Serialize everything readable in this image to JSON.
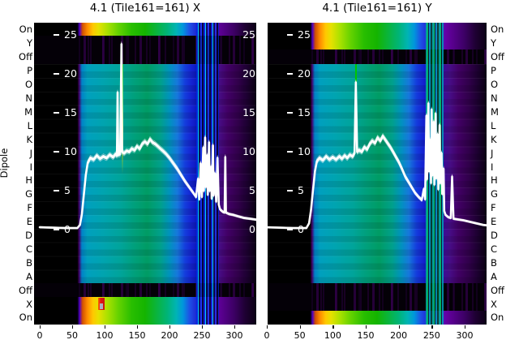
{
  "figure": {
    "title_left": "4.1 (Tile161=161) X",
    "title_right": "4.1 (Tile161=161) Y",
    "ylabel": "Dipole",
    "row_labels": [
      "On",
      "Y",
      "Off",
      "P",
      "O",
      "N",
      "M",
      "L",
      "K",
      "J",
      "I",
      "H",
      "G",
      "F",
      "E",
      "D",
      "C",
      "B",
      "A",
      "Off",
      "X",
      "On"
    ]
  },
  "colors": {
    "background": "#ffffff",
    "curve": "#ffffff",
    "axis_text": "#000000",
    "inner_tick_text": "#ffffff",
    "block_teal": "#00a4ae",
    "block_green": "#009c64",
    "block_blue": "#1432d7",
    "block_purple": "#46006e",
    "bright_orange": "#e67800",
    "bright_yellow": "#ffd700",
    "bright_green": "#1eb400",
    "hot_red": "#dd1414"
  },
  "chart_data": [
    {
      "type": "heatmap",
      "title": "4.1 (Tile161=161) X",
      "x_axis": {
        "ticks": [
          0,
          50,
          100,
          150,
          200,
          250,
          300
        ],
        "range": [
          -9,
          334
        ]
      },
      "y_inner_ticks_db": [
        25,
        20,
        15,
        10,
        5,
        0
      ],
      "inner_tick_sides": [
        "left",
        "right"
      ],
      "rows": [
        {
          "label": "On",
          "state": "spectrum"
        },
        {
          "label": "Y",
          "state": "black"
        },
        {
          "label": "Off",
          "state": "black"
        },
        {
          "label": "P",
          "state": "block"
        },
        {
          "label": "O",
          "state": "block"
        },
        {
          "label": "N",
          "state": "block"
        },
        {
          "label": "M",
          "state": "block"
        },
        {
          "label": "L",
          "state": "block"
        },
        {
          "label": "K",
          "state": "block"
        },
        {
          "label": "J",
          "state": "block"
        },
        {
          "label": "I",
          "state": "block"
        },
        {
          "label": "H",
          "state": "block"
        },
        {
          "label": "G",
          "state": "block"
        },
        {
          "label": "F",
          "state": "block"
        },
        {
          "label": "E",
          "state": "block"
        },
        {
          "label": "D",
          "state": "block"
        },
        {
          "label": "C",
          "state": "block"
        },
        {
          "label": "B",
          "state": "block"
        },
        {
          "label": "A",
          "state": "block"
        },
        {
          "label": "Off",
          "state": "black"
        },
        {
          "label": "X",
          "state": "spectrum"
        },
        {
          "label": "On",
          "state": "spectrum"
        }
      ],
      "stripe_band": {
        "from": 241,
        "to": 276,
        "palette": "blue-cyan"
      },
      "rfi_line": {
        "channel": 127,
        "rows_length": 8
      },
      "hot_spot": {
        "row": "X",
        "from": 90,
        "to": 100,
        "grey_patch": true
      },
      "series": {
        "name": "per-dipole power (dB)",
        "color": "#ffffff",
        "points": [
          [
            0,
            0.3
          ],
          [
            40,
            0.2
          ],
          [
            58,
            0.2
          ],
          [
            62,
            0.6
          ],
          [
            65,
            2
          ],
          [
            68,
            4.5
          ],
          [
            71,
            7
          ],
          [
            74,
            8.6
          ],
          [
            78,
            9.2
          ],
          [
            83,
            9.0
          ],
          [
            88,
            9.5
          ],
          [
            93,
            9.1
          ],
          [
            98,
            9.4
          ],
          [
            103,
            9.2
          ],
          [
            108,
            9.6
          ],
          [
            113,
            9.3
          ],
          [
            117,
            9.7
          ],
          [
            119,
            9.5
          ],
          [
            120,
            17.6
          ],
          [
            121,
            9.6
          ],
          [
            124,
            9.7
          ],
          [
            126,
            23.8
          ],
          [
            127,
            10.0
          ],
          [
            130,
            9.8
          ],
          [
            134,
            10.1
          ],
          [
            138,
            10.0
          ],
          [
            142,
            10.4
          ],
          [
            146,
            10.2
          ],
          [
            150,
            10.7
          ],
          [
            154,
            10.4
          ],
          [
            158,
            11.0
          ],
          [
            162,
            11.3
          ],
          [
            166,
            11.0
          ],
          [
            170,
            11.6
          ],
          [
            174,
            11.2
          ],
          [
            178,
            11.0
          ],
          [
            182,
            10.7
          ],
          [
            186,
            10.4
          ],
          [
            190,
            10.1
          ],
          [
            195,
            9.7
          ],
          [
            200,
            9.2
          ],
          [
            206,
            8.5
          ],
          [
            212,
            7.8
          ],
          [
            218,
            7.0
          ],
          [
            224,
            6.2
          ],
          [
            230,
            5.5
          ],
          [
            236,
            4.8
          ],
          [
            241,
            4.2
          ],
          [
            244,
            6.5
          ],
          [
            246,
            3.9
          ],
          [
            248,
            8.5
          ],
          [
            250,
            4.2
          ],
          [
            252,
            10.5
          ],
          [
            253,
            5
          ],
          [
            255,
            11.8
          ],
          [
            256,
            5.5
          ],
          [
            258,
            9.5
          ],
          [
            259,
            4.5
          ],
          [
            261,
            11.2
          ],
          [
            262,
            5
          ],
          [
            264,
            8.0
          ],
          [
            265,
            4.0
          ],
          [
            267,
            10.8
          ],
          [
            268,
            4.4
          ],
          [
            270,
            7.2
          ],
          [
            272,
            3.6
          ],
          [
            274,
            9.2
          ],
          [
            276,
            3.2
          ],
          [
            278,
            2.6
          ],
          [
            282,
            2.3
          ],
          [
            285,
            2.2
          ],
          [
            286,
            9.3
          ],
          [
            287,
            2.2
          ],
          [
            292,
            2.0
          ],
          [
            298,
            1.9
          ],
          [
            306,
            1.7
          ],
          [
            315,
            1.5
          ],
          [
            324,
            1.4
          ],
          [
            332,
            1.3
          ],
          [
            339,
            1.2
          ]
        ]
      }
    },
    {
      "type": "heatmap",
      "title": "4.1 (Tile161=161) Y",
      "x_axis": {
        "ticks": [
          0,
          50,
          100,
          150,
          200,
          250,
          300
        ],
        "range": [
          -1,
          332
        ]
      },
      "y_inner_ticks_db": [
        25,
        20,
        15,
        10,
        5,
        0
      ],
      "inner_tick_sides": [
        "left"
      ],
      "rows": [
        {
          "label": "On",
          "state": "spectrum"
        },
        {
          "label": "Y",
          "state": "spectrum"
        },
        {
          "label": "Off",
          "state": "black"
        },
        {
          "label": "P",
          "state": "block"
        },
        {
          "label": "O",
          "state": "block"
        },
        {
          "label": "N",
          "state": "block"
        },
        {
          "label": "M",
          "state": "block"
        },
        {
          "label": "L",
          "state": "block"
        },
        {
          "label": "K",
          "state": "block"
        },
        {
          "label": "J",
          "state": "block"
        },
        {
          "label": "I",
          "state": "block"
        },
        {
          "label": "H",
          "state": "block"
        },
        {
          "label": "G",
          "state": "block"
        },
        {
          "label": "F",
          "state": "block"
        },
        {
          "label": "E",
          "state": "block"
        },
        {
          "label": "D",
          "state": "block"
        },
        {
          "label": "C",
          "state": "block"
        },
        {
          "label": "B",
          "state": "block"
        },
        {
          "label": "A",
          "state": "block"
        },
        {
          "label": "Off",
          "state": "black"
        },
        {
          "label": "X",
          "state": "black"
        },
        {
          "label": "On",
          "state": "spectrum"
        }
      ],
      "stripe_band": {
        "from": 241,
        "to": 268,
        "palette": "teal-green"
      },
      "rfi_line": {
        "channel": 135,
        "rows_length": 4
      },
      "hot_spot": null,
      "series": {
        "name": "per-dipole power (dB)",
        "color": "#ffffff",
        "points": [
          [
            0,
            0.3
          ],
          [
            40,
            0.2
          ],
          [
            60,
            0.2
          ],
          [
            64,
            0.8
          ],
          [
            67,
            2.5
          ],
          [
            70,
            5
          ],
          [
            73,
            7.5
          ],
          [
            76,
            8.8
          ],
          [
            80,
            9.2
          ],
          [
            85,
            8.9
          ],
          [
            90,
            9.4
          ],
          [
            95,
            9.0
          ],
          [
            100,
            9.3
          ],
          [
            105,
            9.0
          ],
          [
            110,
            9.4
          ],
          [
            114,
            9.1
          ],
          [
            118,
            9.5
          ],
          [
            122,
            9.2
          ],
          [
            126,
            9.6
          ],
          [
            130,
            9.4
          ],
          [
            133,
            9.8
          ],
          [
            135,
            18.9
          ],
          [
            137,
            10.0
          ],
          [
            140,
            10.2
          ],
          [
            144,
            10.0
          ],
          [
            148,
            10.6
          ],
          [
            152,
            10.3
          ],
          [
            156,
            11.0
          ],
          [
            160,
            11.4
          ],
          [
            164,
            11.1
          ],
          [
            168,
            11.8
          ],
          [
            172,
            11.4
          ],
          [
            176,
            12.0
          ],
          [
            180,
            11.5
          ],
          [
            184,
            11.0
          ],
          [
            188,
            10.5
          ],
          [
            192,
            9.9
          ],
          [
            196,
            9.3
          ],
          [
            200,
            8.7
          ],
          [
            205,
            7.8
          ],
          [
            210,
            6.8
          ],
          [
            215,
            6.1
          ],
          [
            220,
            5.4
          ],
          [
            225,
            4.7
          ],
          [
            230,
            4.2
          ],
          [
            235,
            3.8
          ],
          [
            238,
            5.2
          ],
          [
            240,
            3.9
          ],
          [
            242,
            14.6
          ],
          [
            243,
            6.5
          ],
          [
            245,
            16.2
          ],
          [
            246,
            7.5
          ],
          [
            248,
            11.5
          ],
          [
            249,
            6
          ],
          [
            250,
            15.4
          ],
          [
            251,
            7
          ],
          [
            253,
            13.8
          ],
          [
            254,
            5.8
          ],
          [
            256,
            14.9
          ],
          [
            257,
            6.6
          ],
          [
            259,
            12.2
          ],
          [
            260,
            5.2
          ],
          [
            262,
            13.4
          ],
          [
            263,
            6
          ],
          [
            265,
            9.8
          ],
          [
            266,
            4.6
          ],
          [
            268,
            7.8
          ],
          [
            269,
            2.4
          ],
          [
            271,
            1.9
          ],
          [
            275,
            1.6
          ],
          [
            279,
            1.5
          ],
          [
            281,
            6.8
          ],
          [
            283,
            1.4
          ],
          [
            290,
            1.3
          ],
          [
            298,
            1.2
          ],
          [
            308,
            1.0
          ],
          [
            318,
            0.8
          ],
          [
            328,
            0.6
          ],
          [
            339,
            0.5
          ]
        ]
      }
    }
  ]
}
